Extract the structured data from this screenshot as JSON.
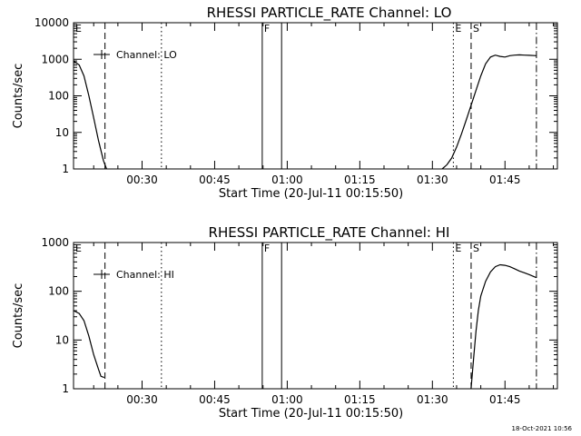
{
  "stamp": "18-Oct-2021 10:56",
  "chart_data": [
    {
      "type": "line",
      "title": "RHESSI PARTICLE_RATE Channel: LO",
      "xlabel": "Start Time (20-Jul-11 00:15:50)",
      "ylabel": "Counts/sec",
      "yscale": "log",
      "xlim": [
        "00:15:50",
        "01:55:50"
      ],
      "ylim": [
        1,
        10000
      ],
      "x_ticks": [
        "00:30",
        "00:45",
        "01:00",
        "01:15",
        "01:30",
        "01:45"
      ],
      "y_ticks": [
        "1",
        "10",
        "100",
        "1000",
        "10000"
      ],
      "legend": {
        "label": "Channel: LO",
        "placement": "top-left"
      },
      "markers": [
        {
          "label": "E",
          "time": "00:15:50",
          "style": "dashed"
        },
        {
          "label": "",
          "time": "00:22:20",
          "style": "dashed"
        },
        {
          "label": "",
          "time": "00:34:00",
          "style": "dotted"
        },
        {
          "label": "F",
          "time": "00:54:50",
          "style": "solid"
        },
        {
          "label": "",
          "time": "00:58:50",
          "style": "solid"
        },
        {
          "label": "E",
          "time": "01:34:20",
          "style": "dotted"
        },
        {
          "label": "S",
          "time": "01:38:00",
          "style": "dashed"
        },
        {
          "label": "",
          "time": "01:51:30",
          "style": "dashdot"
        }
      ],
      "segments": [
        [
          {
            "t": "00:15:50",
            "y": 900
          },
          {
            "t": "00:17:00",
            "y": 700
          },
          {
            "t": "00:18:00",
            "y": 350
          },
          {
            "t": "00:19:00",
            "y": 100
          },
          {
            "t": "00:20:00",
            "y": 25
          },
          {
            "t": "00:21:00",
            "y": 6
          },
          {
            "t": "00:22:00",
            "y": 1.7
          },
          {
            "t": "00:22:40",
            "y": 1
          }
        ],
        [
          {
            "t": "01:32:00",
            "y": 1
          },
          {
            "t": "01:33:00",
            "y": 1.3
          },
          {
            "t": "01:34:00",
            "y": 2
          },
          {
            "t": "01:35:00",
            "y": 4
          },
          {
            "t": "01:36:00",
            "y": 9
          },
          {
            "t": "01:37:00",
            "y": 22
          },
          {
            "t": "01:38:00",
            "y": 55
          },
          {
            "t": "01:39:00",
            "y": 140
          },
          {
            "t": "01:40:00",
            "y": 350
          },
          {
            "t": "01:41:00",
            "y": 750
          },
          {
            "t": "01:42:00",
            "y": 1150
          },
          {
            "t": "01:43:00",
            "y": 1300
          },
          {
            "t": "01:44:00",
            "y": 1200
          },
          {
            "t": "01:45:00",
            "y": 1150
          },
          {
            "t": "01:46:00",
            "y": 1250
          },
          {
            "t": "01:47:00",
            "y": 1300
          },
          {
            "t": "01:48:00",
            "y": 1320
          },
          {
            "t": "01:49:00",
            "y": 1300
          },
          {
            "t": "01:50:00",
            "y": 1280
          },
          {
            "t": "01:51:30",
            "y": 1250
          }
        ]
      ]
    },
    {
      "type": "line",
      "title": "RHESSI PARTICLE_RATE Channel: HI",
      "xlabel": "Start Time (20-Jul-11 00:15:50)",
      "ylabel": "Counts/sec",
      "yscale": "log",
      "xlim": [
        "00:15:50",
        "01:55:50"
      ],
      "ylim": [
        1,
        1000
      ],
      "x_ticks": [
        "00:30",
        "00:45",
        "01:00",
        "01:15",
        "01:30",
        "01:45"
      ],
      "y_ticks": [
        "1",
        "10",
        "100",
        "1000"
      ],
      "legend": {
        "label": "Channel: HI",
        "placement": "top-left"
      },
      "markers": [
        {
          "label": "E",
          "time": "00:15:50",
          "style": "dashed"
        },
        {
          "label": "",
          "time": "00:22:20",
          "style": "dashed"
        },
        {
          "label": "",
          "time": "00:34:00",
          "style": "dotted"
        },
        {
          "label": "F",
          "time": "00:54:50",
          "style": "solid"
        },
        {
          "label": "",
          "time": "00:58:50",
          "style": "solid"
        },
        {
          "label": "E",
          "time": "01:34:20",
          "style": "dotted"
        },
        {
          "label": "S",
          "time": "01:38:00",
          "style": "dashed"
        },
        {
          "label": "",
          "time": "01:51:30",
          "style": "dashdot"
        }
      ],
      "segments": [
        [
          {
            "t": "00:15:50",
            "y": 40
          },
          {
            "t": "00:17:00",
            "y": 35
          },
          {
            "t": "00:18:00",
            "y": 25
          },
          {
            "t": "00:19:00",
            "y": 12
          },
          {
            "t": "00:20:00",
            "y": 5
          },
          {
            "t": "00:21:00",
            "y": 2.5
          },
          {
            "t": "00:21:30",
            "y": 1.8
          },
          {
            "t": "00:22:10",
            "y": 1.7
          }
        ],
        [
          {
            "t": "01:38:00",
            "y": 1
          },
          {
            "t": "01:38:30",
            "y": 4
          },
          {
            "t": "01:39:00",
            "y": 15
          },
          {
            "t": "01:39:30",
            "y": 40
          },
          {
            "t": "01:40:00",
            "y": 80
          },
          {
            "t": "01:41:00",
            "y": 160
          },
          {
            "t": "01:42:00",
            "y": 250
          },
          {
            "t": "01:43:00",
            "y": 320
          },
          {
            "t": "01:44:00",
            "y": 350
          },
          {
            "t": "01:45:00",
            "y": 340
          },
          {
            "t": "01:46:00",
            "y": 320
          },
          {
            "t": "01:47:00",
            "y": 290
          },
          {
            "t": "01:48:00",
            "y": 260
          },
          {
            "t": "01:49:00",
            "y": 240
          },
          {
            "t": "01:50:00",
            "y": 220
          },
          {
            "t": "01:51:30",
            "y": 190
          }
        ]
      ]
    }
  ]
}
